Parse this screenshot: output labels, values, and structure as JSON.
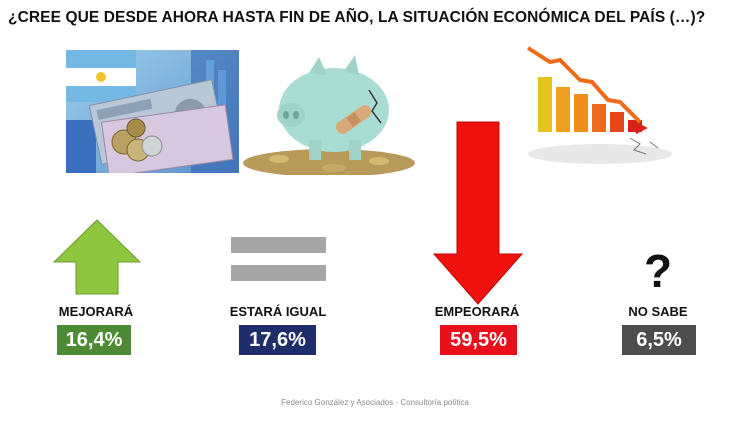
{
  "title": "¿CREE QUE DESDE AHORA HASTA FIN DE AÑO, LA SITUACIÓN ECONÓMICA DEL PAÍS (…)?",
  "footer": "Federico González y Asociados - Consultoría política",
  "icons": {
    "up": "green-up-arrow-icon",
    "equal": "gray-equal-sign-icon",
    "down": "red-down-arrow-icon",
    "unknown": "question-mark-icon"
  },
  "question_mark": "?",
  "chart_data": {
    "type": "bar",
    "title": "¿CREE QUE DESDE AHORA HASTA FIN DE AÑO, LA SITUACIÓN ECONÓMICA DEL PAÍS (…)?",
    "categories": [
      "MEJORARÁ",
      "ESTARÁ IGUAL",
      "EMPEORARÁ",
      "NO SABE"
    ],
    "values": [
      16.4,
      17.6,
      59.5,
      6.5
    ],
    "value_labels": [
      "16,4%",
      "17,6%",
      "59,5%",
      "6,5%"
    ],
    "colors": [
      "#4e8a35",
      "#1f2d6b",
      "#e8101a",
      "#4d4d4d"
    ],
    "unit": "%"
  }
}
